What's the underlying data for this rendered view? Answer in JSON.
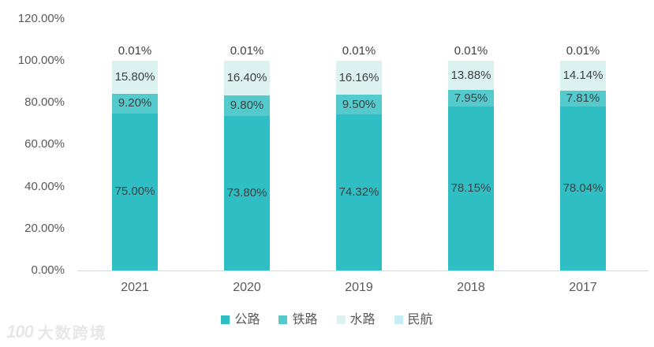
{
  "chart_data": {
    "type": "bar",
    "stacked": true,
    "title": "",
    "categories": [
      "2021",
      "2020",
      "2019",
      "2018",
      "2017"
    ],
    "series": [
      {
        "name": "公路",
        "color": "#2fbec3",
        "values": [
          75.0,
          73.8,
          74.32,
          78.15,
          78.04
        ],
        "labels": [
          "75.00%",
          "73.80%",
          "74.32%",
          "78.15%",
          "78.04%"
        ]
      },
      {
        "name": "铁路",
        "color": "#54cacd",
        "values": [
          9.2,
          9.8,
          9.5,
          7.95,
          7.81
        ],
        "labels": [
          "9.20%",
          "9.80%",
          "9.50%",
          "7.95%",
          "7.81%"
        ]
      },
      {
        "name": "水路",
        "color": "#dbf2f0",
        "values": [
          15.8,
          16.4,
          16.16,
          13.88,
          14.14
        ],
        "labels": [
          "15.80%",
          "16.40%",
          "16.16%",
          "13.88%",
          "14.14%"
        ]
      },
      {
        "name": "民航",
        "color": "#c9edf4",
        "values": [
          0.01,
          0.01,
          0.01,
          0.01,
          0.01
        ],
        "labels": [
          "0.01%",
          "0.01%",
          "0.01%",
          "0.01%",
          "0.01%"
        ]
      }
    ],
    "y_axis": {
      "min": 0,
      "max": 120,
      "step": 20,
      "tick_labels": [
        "0.00%",
        "20.00%",
        "40.00%",
        "60.00%",
        "80.00%",
        "100.00%",
        "120.00%"
      ]
    },
    "legend": [
      "公路",
      "铁路",
      "水路",
      "民航"
    ],
    "legend_position": "bottom",
    "grid": false
  },
  "watermark": {
    "logo": "100",
    "text": "大数跨境"
  },
  "colors": {
    "axis_text": "#595959",
    "data_label_text": "#404040",
    "baseline": "#d9d9d9",
    "watermark": "#e7e7e7"
  }
}
